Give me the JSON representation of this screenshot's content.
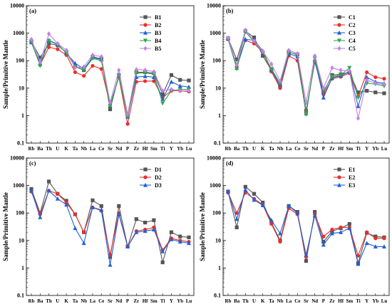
{
  "chart_data": [
    {
      "type": "line",
      "panel_label": "(a)",
      "ylabel": "Sample/Primitive Mantle",
      "yscale": "log",
      "ylim": [
        0.1,
        10000
      ],
      "yticks": [
        "0.1",
        "1",
        "10",
        "100",
        "1000",
        "10000"
      ],
      "categories": [
        "Rb",
        "Ba",
        "Th",
        "U",
        "K",
        "Ta",
        "Nb",
        "La",
        "Ce",
        "Sr",
        "Nd",
        "P",
        "Zr",
        "Hf",
        "Sm",
        "Ti",
        "Y",
        "Yb",
        "Lu"
      ],
      "series": [
        {
          "name": "B1",
          "color": "#555555",
          "marker": "square",
          "values": [
            500,
            130,
            420,
            360,
            200,
            65,
            45,
            140,
            115,
            1.7,
            30,
            1.0,
            38,
            38,
            35,
            6,
            30,
            20,
            19
          ]
        },
        {
          "name": "B2",
          "color": "#e8302c",
          "marker": "circle",
          "values": [
            470,
            70,
            310,
            260,
            160,
            38,
            28,
            65,
            50,
            2.5,
            25,
            0.5,
            17,
            18,
            18,
            4.5,
            8,
            8,
            7.5
          ]
        },
        {
          "name": "B3",
          "color": "#2060d8",
          "marker": "triangle-up",
          "values": [
            460,
            75,
            550,
            400,
            190,
            80,
            50,
            130,
            110,
            2.3,
            28,
            0.9,
            25,
            27,
            25,
            4,
            17,
            12,
            11
          ]
        },
        {
          "name": "B4",
          "color": "#2fa84f",
          "marker": "triangle-down",
          "values": [
            480,
            65,
            530,
            380,
            190,
            60,
            45,
            120,
            100,
            2.2,
            27,
            0.9,
            35,
            36,
            32,
            2.8,
            8,
            9,
            9
          ]
        },
        {
          "name": "B5",
          "color": "#c77ee8",
          "marker": "diamond",
          "values": [
            600,
            90,
            950,
            420,
            240,
            55,
            60,
            160,
            140,
            3.0,
            45,
            1.1,
            48,
            45,
            40,
            8,
            9,
            8,
            8
          ]
        }
      ]
    },
    {
      "type": "line",
      "panel_label": "(b)",
      "ylabel": "Sample/Primitive Mantle",
      "yscale": "log",
      "ylim": [
        0.1,
        10000
      ],
      "yticks": [
        "0.1",
        "1",
        "10",
        "100",
        "1000",
        "10000"
      ],
      "categories": [
        "Rb",
        "Ba",
        "Th",
        "U",
        "K",
        "Ta",
        "Nb",
        "La",
        "Ce",
        "Sr",
        "Nd",
        "P",
        "Zr",
        "Hf",
        "Sm",
        "Ti",
        "Y",
        "Yb",
        "Lu"
      ],
      "series": [
        {
          "name": "C1",
          "color": "#555555",
          "marker": "square",
          "values": [
            650,
            110,
            1200,
            700,
            150,
            45,
            12,
            200,
            170,
            1.5,
            90,
            7,
            30,
            32,
            38,
            7,
            8,
            7,
            6.5
          ]
        },
        {
          "name": "C2",
          "color": "#e8302c",
          "marker": "circle",
          "values": [
            600,
            60,
            550,
            420,
            210,
            40,
            10,
            150,
            100,
            1.3,
            100,
            6,
            22,
            26,
            35,
            5,
            38,
            25,
            22
          ]
        },
        {
          "name": "C3",
          "color": "#2060d8",
          "marker": "triangle-up",
          "values": [
            620,
            55,
            600,
            550,
            230,
            45,
            13,
            180,
            140,
            1.2,
            110,
            4.5,
            24,
            28,
            40,
            2.2,
            25,
            17,
            15
          ]
        },
        {
          "name": "C4",
          "color": "#2fa84f",
          "marker": "triangle-down",
          "values": [
            640,
            50,
            1100,
            500,
            200,
            50,
            15,
            210,
            160,
            1.1,
            120,
            8,
            26,
            30,
            55,
            4.5,
            15,
            14,
            12
          ]
        },
        {
          "name": "C5",
          "color": "#c77ee8",
          "marker": "diamond",
          "values": [
            680,
            70,
            1300,
            520,
            220,
            75,
            18,
            240,
            180,
            3.0,
            150,
            10,
            55,
            45,
            42,
            0.8,
            20,
            15,
            14
          ]
        }
      ]
    },
    {
      "type": "line",
      "panel_label": "(c)",
      "ylabel": "Sample/Primitive Mantle",
      "yscale": "log",
      "ylim": [
        0.1,
        10000
      ],
      "yticks": [
        "0.1",
        "1",
        "10",
        "100",
        "1000",
        "10000"
      ],
      "categories": [
        "Rb",
        "Ba",
        "Th",
        "U",
        "K",
        "Ta",
        "Nb",
        "La",
        "Ce",
        "Sr",
        "Nd",
        "P",
        "Zr",
        "Hf",
        "Sm",
        "Ti",
        "Y",
        "Yb",
        "Lu"
      ],
      "series": [
        {
          "name": "D1",
          "color": "#555555",
          "marker": "square",
          "values": [
            750,
            100,
            1400,
            500,
            280,
            90,
            20,
            290,
            180,
            2.5,
            180,
            6,
            60,
            45,
            55,
            1.6,
            20,
            14,
            13
          ]
        },
        {
          "name": "D2",
          "color": "#e8302c",
          "marker": "circle",
          "values": [
            600,
            90,
            650,
            500,
            240,
            90,
            20,
            160,
            120,
            3.0,
            100,
            6,
            22,
            25,
            30,
            4.5,
            12,
            10,
            9
          ]
        },
        {
          "name": "D3",
          "color": "#2060d8",
          "marker": "triangle-up",
          "values": [
            650,
            70,
            650,
            330,
            200,
            28,
            8,
            160,
            130,
            1.3,
            90,
            6,
            20,
            22,
            25,
            4,
            11,
            9,
            8
          ]
        }
      ]
    },
    {
      "type": "line",
      "panel_label": "(d)",
      "ylabel": "Sample/Primitive Mantle",
      "yscale": "log",
      "ylim": [
        0.1,
        10000
      ],
      "yticks": [
        "0.1",
        "1",
        "10",
        "100",
        "1000",
        "10000"
      ],
      "categories": [
        "Rb",
        "Ba",
        "Th",
        "U",
        "K",
        "Ta",
        "Nb",
        "La",
        "Ce",
        "Sr",
        "Nd",
        "P",
        "Zr",
        "Hf",
        "Sm",
        "Ti",
        "Y",
        "Yb",
        "Lu"
      ],
      "series": [
        {
          "name": "E1",
          "color": "#555555",
          "marker": "square",
          "values": [
            600,
            30,
            900,
            500,
            240,
            45,
            10,
            180,
            110,
            1.8,
            110,
            9,
            22,
            28,
            40,
            1.5,
            19,
            14,
            13
          ]
        },
        {
          "name": "E2",
          "color": "#e8302c",
          "marker": "circle",
          "values": [
            550,
            100,
            550,
            330,
            200,
            40,
            9,
            150,
            90,
            2.5,
            90,
            14,
            25,
            30,
            30,
            2.8,
            20,
            12,
            12
          ]
        },
        {
          "name": "E3",
          "color": "#2060d8",
          "marker": "triangle-up",
          "values": [
            620,
            60,
            700,
            300,
            190,
            55,
            18,
            180,
            100,
            3.0,
            80,
            7,
            18,
            20,
            28,
            1.4,
            8,
            6,
            6
          ]
        }
      ]
    }
  ]
}
